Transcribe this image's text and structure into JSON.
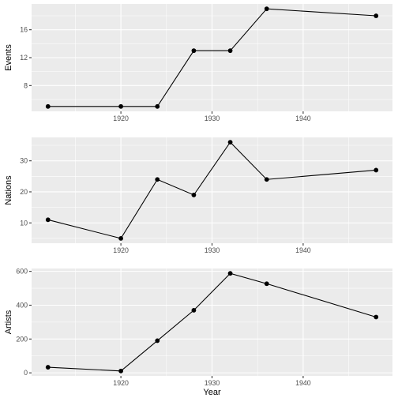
{
  "chart_data": [
    {
      "type": "line",
      "ylabel": "Events",
      "xlabel": "",
      "x": [
        1912,
        1920,
        1924,
        1928,
        1932,
        1936,
        1948
      ],
      "values": [
        5,
        5,
        5,
        13,
        13,
        19,
        18
      ],
      "xlim": [
        1910.2,
        1949.8
      ],
      "ylim": [
        4.3,
        19.7
      ],
      "xticks": [
        1920,
        1930,
        1940
      ],
      "yticks": [
        8,
        12,
        16
      ],
      "grid": true
    },
    {
      "type": "line",
      "ylabel": "Nations",
      "xlabel": "",
      "x": [
        1912,
        1920,
        1924,
        1928,
        1932,
        1936,
        1948
      ],
      "values": [
        11,
        5,
        24,
        19,
        36,
        24,
        27
      ],
      "xlim": [
        1910.2,
        1949.8
      ],
      "ylim": [
        3.45,
        37.55
      ],
      "xticks": [
        1920,
        1930,
        1940
      ],
      "yticks": [
        10,
        20,
        30
      ],
      "grid": true
    },
    {
      "type": "line",
      "ylabel": "Artists",
      "xlabel": "Year",
      "x": [
        1912,
        1920,
        1924,
        1928,
        1932,
        1936,
        1948
      ],
      "values": [
        33,
        11,
        190,
        370,
        588,
        527,
        330
      ],
      "xlim": [
        1910.2,
        1949.8
      ],
      "ylim": [
        -18,
        617
      ],
      "xticks": [
        1920,
        1930,
        1940
      ],
      "yticks": [
        0,
        200,
        400,
        600
      ],
      "grid": true
    }
  ]
}
